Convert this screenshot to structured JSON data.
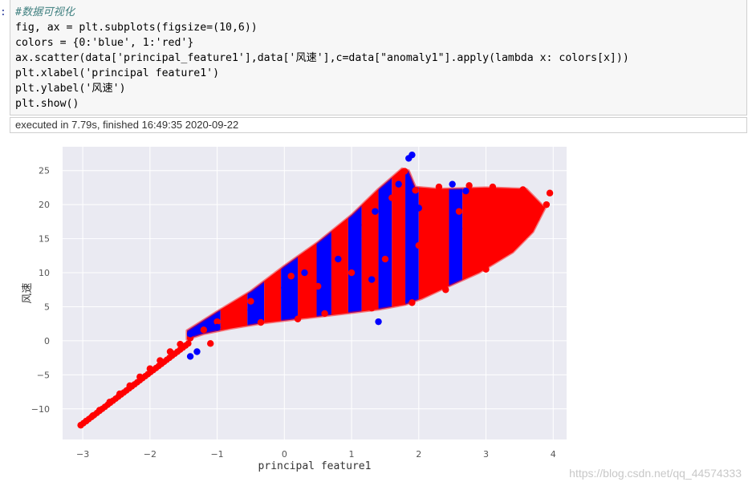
{
  "cell": {
    "prompt": ":",
    "code_lines": [
      "#数据可视化",
      "fig, ax = plt.subplots(figsize=(10,6))",
      "colors = {0:'blue', 1:'red'}",
      "ax.scatter(data['principal_feature1'],data['风速'],c=data[\"anomaly1\"].apply(lambda x: colors[x]))",
      "plt.xlabel('principal feature1')",
      "plt.ylabel('风速')",
      "plt.show()"
    ],
    "status": "executed in 7.79s, finished 16:49:35 2020-09-22"
  },
  "colors": {
    "blue": "#0000ff",
    "red": "#ff0000",
    "plot_bg": "#eaeaf2",
    "grid": "#ffffff"
  },
  "chart_data": {
    "type": "scatter",
    "xlabel": "principal feature1",
    "ylabel": "风速",
    "xlim": [
      -3.3,
      4.2
    ],
    "ylim": [
      -14.5,
      28.5
    ],
    "xticks": [
      -3,
      -2,
      -1,
      0,
      1,
      2,
      3,
      4
    ],
    "yticks": [
      -10,
      -5,
      0,
      5,
      10,
      15,
      20,
      25
    ],
    "grid": true,
    "series": [
      {
        "color": "red",
        "points": [
          [
            -3.03,
            -12.4
          ],
          [
            -2.95,
            -11.8
          ],
          [
            -2.85,
            -11.0
          ],
          [
            -2.75,
            -10.2
          ],
          [
            -2.6,
            -9.0
          ],
          [
            -2.45,
            -7.8
          ],
          [
            -2.3,
            -6.6
          ],
          [
            -2.15,
            -5.3
          ],
          [
            -2.0,
            -4.1
          ],
          [
            -1.85,
            -2.9
          ],
          [
            -1.7,
            -1.6
          ],
          [
            -1.55,
            -0.5
          ],
          [
            -1.4,
            0.4
          ],
          [
            -1.2,
            1.6
          ],
          [
            -1.0,
            2.8
          ],
          [
            -0.75,
            4.5
          ],
          [
            -0.5,
            5.8
          ],
          [
            -0.2,
            7.5
          ],
          [
            0.1,
            9.5
          ],
          [
            0.4,
            11.5
          ],
          [
            0.8,
            14.0
          ],
          [
            1.2,
            17.0
          ],
          [
            1.6,
            21.0
          ],
          [
            1.73,
            23.5
          ],
          [
            1.79,
            24.9
          ],
          [
            -1.1,
            -0.4
          ],
          [
            -0.35,
            2.7
          ],
          [
            0.2,
            3.2
          ],
          [
            0.6,
            4.0
          ],
          [
            1.3,
            4.8
          ],
          [
            1.9,
            5.6
          ],
          [
            2.4,
            7.5
          ],
          [
            3.0,
            10.5
          ],
          [
            3.5,
            15.0
          ],
          [
            3.75,
            18.0
          ],
          [
            3.9,
            20.0
          ],
          [
            3.95,
            21.7
          ],
          [
            3.55,
            22.2
          ],
          [
            3.1,
            22.6
          ],
          [
            2.75,
            22.8
          ],
          [
            2.3,
            22.6
          ],
          [
            1.95,
            22.1
          ],
          [
            2.2,
            21.0
          ],
          [
            2.6,
            19.0
          ],
          [
            3.2,
            16.0
          ],
          [
            1.0,
            10.0
          ],
          [
            0.5,
            8.0
          ],
          [
            1.5,
            12.0
          ],
          [
            2.0,
            14.0
          ],
          [
            2.8,
            14.5
          ]
        ]
      },
      {
        "color": "blue",
        "points": [
          [
            -1.4,
            1.0
          ],
          [
            -1.3,
            -1.6
          ],
          [
            -1.4,
            -2.3
          ],
          [
            -1.0,
            2.0
          ],
          [
            -0.5,
            4.5
          ],
          [
            0.0,
            7.8
          ],
          [
            0.3,
            10.0
          ],
          [
            0.8,
            12.0
          ],
          [
            1.05,
            16.0
          ],
          [
            1.35,
            19.0
          ],
          [
            1.4,
            2.8
          ],
          [
            1.5,
            20.5
          ],
          [
            1.7,
            23.0
          ],
          [
            1.85,
            26.8
          ],
          [
            1.9,
            27.3
          ],
          [
            2.0,
            19.5
          ],
          [
            2.5,
            12.0
          ],
          [
            2.6,
            16.5
          ],
          [
            2.7,
            22.0
          ],
          [
            2.5,
            23.0
          ],
          [
            1.3,
            9.0
          ],
          [
            0.6,
            6.0
          ]
        ]
      }
    ],
    "bands": [
      {
        "x1": -1.45,
        "x2": -0.95,
        "color": "blue"
      },
      {
        "x1": -0.95,
        "x2": -0.55,
        "color": "red"
      },
      {
        "x1": -0.55,
        "x2": -0.3,
        "color": "blue"
      },
      {
        "x1": -0.3,
        "x2": -0.05,
        "color": "red"
      },
      {
        "x1": -0.05,
        "x2": 0.2,
        "color": "blue"
      },
      {
        "x1": 0.2,
        "x2": 0.48,
        "color": "red"
      },
      {
        "x1": 0.48,
        "x2": 0.7,
        "color": "blue"
      },
      {
        "x1": 0.7,
        "x2": 0.95,
        "color": "red"
      },
      {
        "x1": 0.95,
        "x2": 1.15,
        "color": "blue"
      },
      {
        "x1": 1.15,
        "x2": 1.4,
        "color": "red"
      },
      {
        "x1": 1.4,
        "x2": 1.6,
        "color": "blue"
      },
      {
        "x1": 1.6,
        "x2": 1.8,
        "color": "red"
      },
      {
        "x1": 1.8,
        "x2": 2.0,
        "color": "blue"
      },
      {
        "x1": 2.0,
        "x2": 2.45,
        "color": "red"
      },
      {
        "x1": 2.45,
        "x2": 2.65,
        "color": "blue"
      },
      {
        "x1": 2.65,
        "x2": 3.95,
        "color": "red"
      }
    ]
  },
  "watermark": "https://blog.csdn.net/qq_44574333"
}
